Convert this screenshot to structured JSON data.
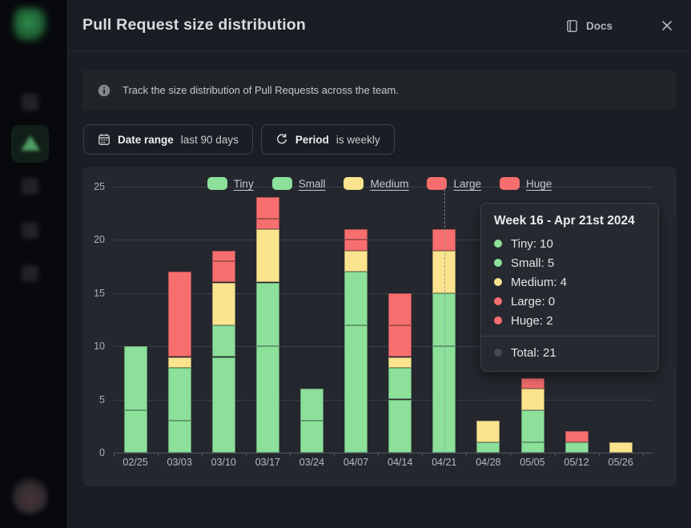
{
  "header": {
    "title": "Pull Request size distribution",
    "docs_label": "Docs"
  },
  "info_banner": {
    "text": "Track the size distribution of Pull Requests across the team."
  },
  "filters": {
    "date_range": {
      "label": "Date range",
      "value": "last 90 days"
    },
    "period": {
      "label": "Period",
      "value": "is weekly"
    }
  },
  "sidebar": {
    "items": [
      {
        "name": "nav-item-1",
        "active": false
      },
      {
        "name": "nav-item-pull-requests",
        "active": true
      },
      {
        "name": "nav-item-2",
        "active": false
      },
      {
        "name": "nav-item-3",
        "active": false
      },
      {
        "name": "nav-item-4",
        "active": false
      }
    ]
  },
  "chart_data": {
    "type": "bar",
    "stacked": true,
    "categories": [
      "02/25",
      "03/03",
      "03/10",
      "03/17",
      "03/24",
      "04/07",
      "04/14",
      "04/21",
      "04/28",
      "05/05",
      "05/12",
      "05/26"
    ],
    "series": [
      {
        "name": "Tiny",
        "color": "#8ce09a",
        "values": [
          4,
          3,
          9,
          10,
          3,
          12,
          5,
          10,
          1,
          1,
          1,
          0
        ]
      },
      {
        "name": "Small",
        "color": "#8ce09a",
        "values": [
          6,
          5,
          3,
          6,
          3,
          5,
          3,
          5,
          0,
          3,
          0,
          0
        ]
      },
      {
        "name": "Medium",
        "color": "#fbe48e",
        "values": [
          0,
          1,
          4,
          5,
          0,
          2,
          1,
          4,
          2,
          2,
          0,
          1
        ]
      },
      {
        "name": "Large",
        "color": "#f76e6e",
        "values": [
          0,
          8,
          2,
          1,
          0,
          1,
          3,
          0,
          0,
          0,
          0,
          0
        ]
      },
      {
        "name": "Huge",
        "color": "#f76e6e",
        "values": [
          0,
          0,
          1,
          2,
          0,
          1,
          3,
          2,
          0,
          1,
          1,
          0
        ]
      }
    ],
    "totals": [
      10,
      17,
      19,
      24,
      6,
      21,
      15,
      21,
      3,
      7,
      2,
      1
    ],
    "y_ticks": [
      0,
      5,
      10,
      15,
      20,
      25
    ],
    "ylim": [
      0,
      25
    ],
    "grid": true,
    "legend_position": "top",
    "highlighted_category": "04/21"
  },
  "tooltip": {
    "title": "Week 16 - Apr 21st 2024",
    "rows": [
      {
        "label": "Tiny",
        "value": "10",
        "color": "#8ce09a"
      },
      {
        "label": "Small",
        "value": "5",
        "color": "#8ce09a"
      },
      {
        "label": "Medium",
        "value": "4",
        "color": "#fbe48e"
      },
      {
        "label": "Large",
        "value": "0",
        "color": "#f76e6e"
      },
      {
        "label": "Huge",
        "value": "2",
        "color": "#f76e6e"
      }
    ],
    "total": {
      "label": "Total",
      "value": "21",
      "color": "#46494f"
    }
  }
}
